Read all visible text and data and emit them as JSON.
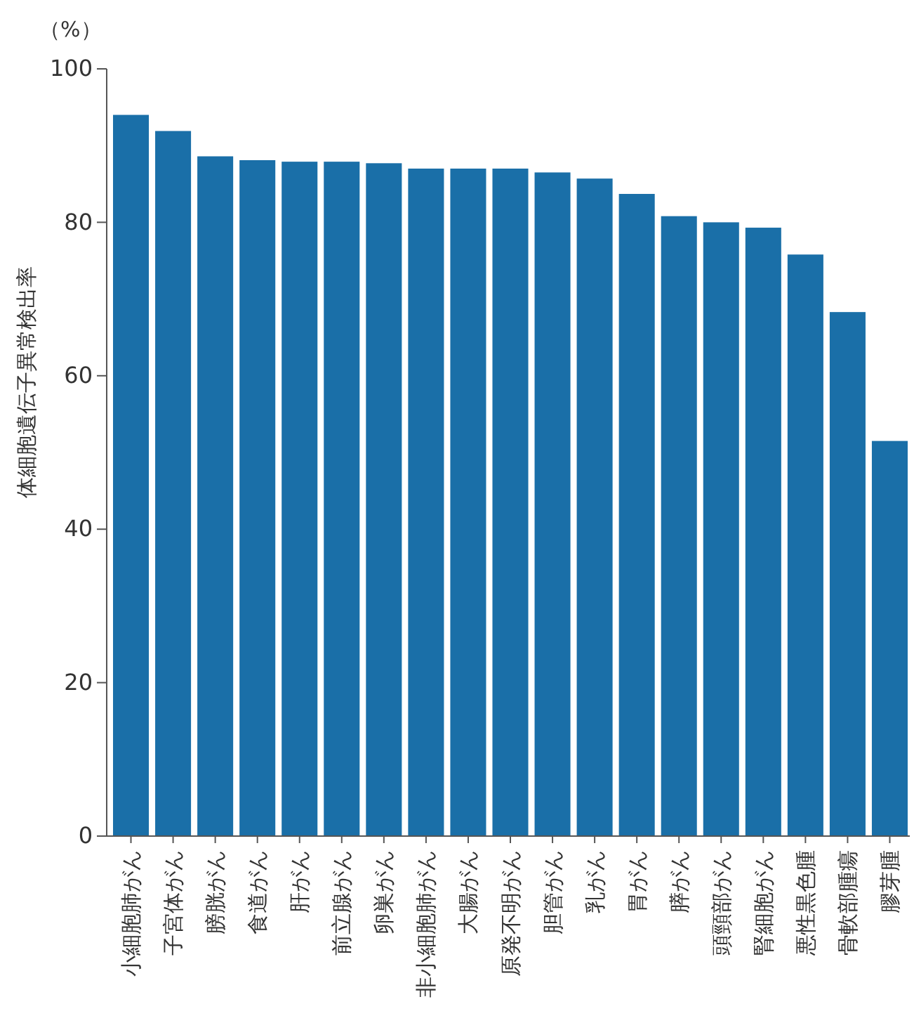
{
  "chart_data": {
    "type": "bar",
    "ylabel": "体細胞遺伝子異常検出率",
    "annotations": [
      "（%）"
    ],
    "categories": [
      "小細胞肺がん",
      "子宮体がん",
      "膀胱がん",
      "食道がん",
      "肝がん",
      "前立腺がん",
      "卵巣がん",
      "非小細胞肺がん",
      "大腸がん",
      "原発不明がん",
      "胆管がん",
      "乳がん",
      "胃がん",
      "膵がん",
      "頭頸部がん",
      "腎細胞がん",
      "悪性黒色腫",
      "骨軟部腫瘍",
      "膠芽腫"
    ],
    "values": [
      94.0,
      91.9,
      88.6,
      88.1,
      87.9,
      87.9,
      87.7,
      87.0,
      87.0,
      87.0,
      86.5,
      85.7,
      83.7,
      80.8,
      80.0,
      79.3,
      75.8,
      68.3,
      51.5
    ],
    "color": "#1a6fa8",
    "ylim": [
      0,
      100
    ],
    "yticks": [
      0,
      20,
      40,
      60,
      80,
      100
    ],
    "grid": false
  }
}
